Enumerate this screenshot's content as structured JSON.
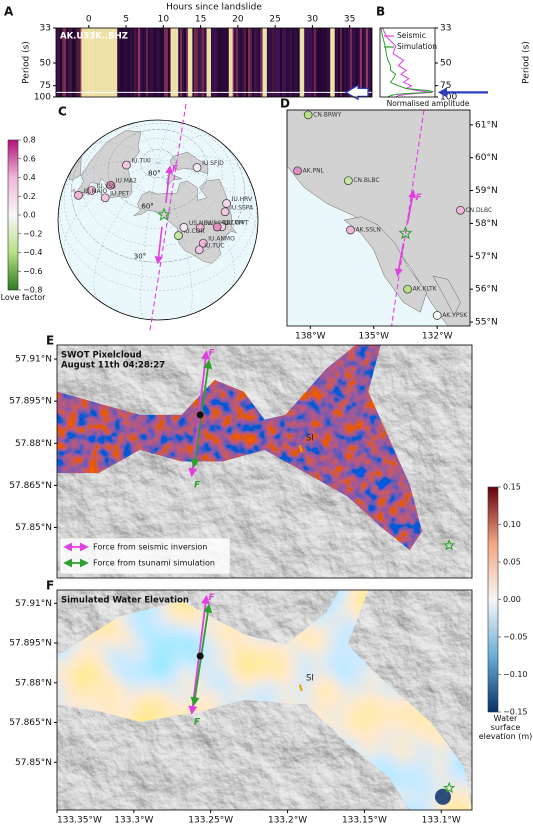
{
  "chart_data": [
    {
      "type": "spectrogram",
      "panel": "A",
      "station": "AK.U33K..BHZ",
      "xlabel": "Hours since landslide",
      "ylabel": "Period (s)",
      "xlim": [
        -4.4,
        38
      ],
      "xticks": [
        0,
        5,
        10,
        15,
        20,
        25,
        30,
        35
      ],
      "ylim": [
        33,
        100
      ],
      "yticks": [
        33,
        50,
        75,
        100
      ],
      "yscale": "reciprocal",
      "bright_intervals": [
        [
          -1,
          3.8
        ],
        [
          11,
          12
        ],
        [
          13.3,
          13.9
        ],
        [
          15.8,
          16.4
        ],
        [
          18.8,
          19.3
        ],
        [
          23.3,
          23.9
        ],
        [
          28.3,
          28.9
        ],
        [
          32.4,
          33
        ]
      ],
      "highlight_period": 88,
      "colormap": [
        "#12031f",
        "#5a1a6e",
        "#c8507a",
        "#fcf3b0"
      ],
      "arrow_color": "#2a3fbf"
    },
    {
      "type": "line",
      "panel": "B",
      "xlabel": "Normalised amplitude",
      "ylabel": "Period (s)",
      "xlim": [
        0,
        1.05
      ],
      "ylim": [
        33,
        100
      ],
      "yticks": [
        33,
        50,
        75,
        100
      ],
      "yscale": "reciprocal",
      "y": [
        33,
        36,
        40,
        44,
        48,
        52,
        56,
        60,
        65,
        70,
        75,
        80,
        84,
        86,
        88,
        90,
        93,
        96,
        100
      ],
      "series": [
        {
          "name": "Seismic",
          "color": "#e040e0",
          "values": [
            0.05,
            0.12,
            0.3,
            0.25,
            0.45,
            0.35,
            0.5,
            0.4,
            0.55,
            0.45,
            0.6,
            0.5,
            0.7,
            0.85,
            1.0,
            0.75,
            0.5,
            0.35,
            0.3
          ]
        },
        {
          "name": "Simulation",
          "color": "#2ca02c",
          "values": [
            0.02,
            0.05,
            0.1,
            0.12,
            0.15,
            0.2,
            0.2,
            0.3,
            0.25,
            0.2,
            0.35,
            0.5,
            0.9,
            1.0,
            0.95,
            0.6,
            0.3,
            0.2,
            0.15
          ]
        }
      ],
      "arrow_color": "#2a3fbf"
    },
    {
      "type": "globe",
      "panel": "C",
      "parallels": [
        {
          "value": 30,
          "label": "30°"
        },
        {
          "value": 60,
          "label": "60°"
        },
        {
          "value": 80,
          "label": "80°"
        }
      ],
      "stations": [
        {
          "name": "IU.TIXI",
          "lat": 71.6,
          "lon": 128.9,
          "love": 0.3
        },
        {
          "name": "IU.MA2",
          "lat": 59.6,
          "lon": 150.8,
          "love": 0.5
        },
        {
          "name": "IU.YSS",
          "lat": 47.0,
          "lon": 142.8,
          "love": 0.4
        },
        {
          "name": "IU.PET",
          "lat": 53.0,
          "lon": 158.6,
          "love": 0.3
        },
        {
          "name": "IU.MAJO",
          "lat": 36.5,
          "lon": 138.2,
          "love": 0.4
        },
        {
          "name": "IU.SFJD",
          "lat": 67.0,
          "lon": -50.6,
          "love": 0.1
        },
        {
          "name": "IU.HRV",
          "lat": 42.5,
          "lon": -71.6,
          "love": 0.2
        },
        {
          "name": "IU.SSPA",
          "lat": 40.6,
          "lon": -77.9,
          "love": 0.3
        },
        {
          "name": "IU.RSSD",
          "lat": 44.1,
          "lon": -104.0,
          "love": 0.4
        },
        {
          "name": "IU.WVT",
          "lat": 36.1,
          "lon": -87.8,
          "love": 0.2
        },
        {
          "name": "IU.CCM",
          "lat": 38.1,
          "lon": -91.2,
          "love": 0.5
        },
        {
          "name": "IU.ANMO",
          "lat": 34.9,
          "lon": -106.5,
          "love": 0.4
        },
        {
          "name": "IU.TUC",
          "lat": 32.3,
          "lon": -110.8,
          "love": 0.3
        },
        {
          "name": "IU.COR",
          "lat": 44.6,
          "lon": -123.3,
          "love": -0.3
        },
        {
          "name": "US.NEW",
          "lat": 48.3,
          "lon": -117.1,
          "love": 0.1
        }
      ],
      "source": {
        "lat": 57.8,
        "lon": -133.6
      },
      "force_label": "F",
      "colorbar": {
        "label": "Love factor",
        "lim": [
          -0.8,
          0.8
        ],
        "ticks": [
          {
            "value": -0.8,
            "label": "−0.8"
          },
          {
            "value": -0.6,
            "label": "−0.6"
          },
          {
            "value": -0.4,
            "label": "−0.4"
          },
          {
            "value": -0.2,
            "label": "−0.2"
          },
          {
            "value": 0,
            "label": "0.0"
          },
          0.2,
          0.4,
          0.6,
          0.8
        ],
        "colors": [
          "#2d7a1e",
          "#b8e186",
          "#f7f7f7",
          "#f1b6da",
          "#b0127a"
        ]
      }
    },
    {
      "type": "map",
      "panel": "D",
      "xlim": [
        -139.1,
        -130.45
      ],
      "ylim": [
        54.88,
        61.45
      ],
      "xticks": [
        {
          "value": -138,
          "label": "138°W"
        },
        {
          "value": -135,
          "label": "135°W"
        },
        {
          "value": -132,
          "label": "132°W"
        }
      ],
      "yticks": [
        {
          "value": 55,
          "label": "55°N"
        },
        {
          "value": 56,
          "label": "56°N"
        },
        {
          "value": 57,
          "label": "57°N"
        },
        {
          "value": 58,
          "label": "58°N"
        },
        {
          "value": 59,
          "label": "59°N"
        },
        {
          "value": 60,
          "label": "60°N"
        },
        {
          "value": 61,
          "label": "61°N"
        }
      ],
      "stations": [
        {
          "name": "CN.BRWY",
          "lat": 61.3,
          "lon": -138.1,
          "love": -0.4
        },
        {
          "name": "AK.PNL",
          "lat": 59.6,
          "lon": -138.6,
          "love": 0.5
        },
        {
          "name": "CN.BLBC",
          "lat": 59.3,
          "lon": -136.2,
          "love": -0.3
        },
        {
          "name": "CN.DLBC",
          "lat": 58.4,
          "lon": -130.9,
          "love": 0.4
        },
        {
          "name": "AK.SSLN",
          "lat": 57.8,
          "lon": -136.1,
          "love": 0.4
        },
        {
          "name": "AK.KLTK",
          "lat": 56.0,
          "lon": -133.4,
          "love": -0.4
        },
        {
          "name": "AK.YPSK",
          "lat": 55.2,
          "lon": -132.0,
          "love": 0.0
        }
      ],
      "source": {
        "lat": 57.7,
        "lon": -133.5
      },
      "force_label": "F"
    },
    {
      "type": "elevation-map",
      "panel": "E",
      "title": "SWOT Pixelcloud",
      "subtitle": "August 11th 04:28:27",
      "xlim": [
        -133.35,
        -133.08
      ],
      "ylim": [
        57.832,
        57.915
      ],
      "yticks": [
        {
          "value": 57.91,
          "label": "57.91°N"
        },
        {
          "value": 57.895,
          "label": "57.895°N"
        },
        {
          "value": 57.88,
          "label": "57.88°N"
        },
        {
          "value": 57.865,
          "label": "57.865°N"
        },
        {
          "value": 57.85,
          "label": "57.85°N"
        }
      ],
      "annotation": "SI",
      "force_label": "F",
      "legend": [
        {
          "name": "Force from seismic inversion",
          "color": "#e040e0"
        },
        {
          "name": "Force from tsunami simulation",
          "color": "#2ca02c"
        }
      ]
    },
    {
      "type": "elevation-map",
      "panel": "F",
      "title": "Simulated Water Elevation",
      "xlim": [
        -133.35,
        -133.08
      ],
      "ylim": [
        57.832,
        57.915
      ],
      "xticks": [
        {
          "value": -133.35,
          "label": "133.35°W"
        },
        {
          "value": -133.3,
          "label": "133.3°W"
        },
        {
          "value": -133.25,
          "label": "133.25°W"
        },
        {
          "value": -133.2,
          "label": "133.2°W"
        },
        {
          "value": -133.15,
          "label": "133.15°W"
        },
        {
          "value": -133.1,
          "label": "133.1°W"
        }
      ],
      "yticks": [
        {
          "value": 57.91,
          "label": "57.91°N"
        },
        {
          "value": 57.895,
          "label": "57.895°N"
        },
        {
          "value": 57.88,
          "label": "57.88°N"
        },
        {
          "value": 57.865,
          "label": "57.865°N"
        },
        {
          "value": 57.85,
          "label": "57.85°N"
        }
      ],
      "annotation": "SI",
      "force_label": "F",
      "colorbar": {
        "label": "Water surface elevation (m)",
        "lim": [
          -0.15,
          0.15
        ],
        "ticks": [
          {
            "value": -0.15,
            "label": "−0.15"
          },
          {
            "value": -0.1,
            "label": "−0.10"
          },
          {
            "value": -0.05,
            "label": "−0.05"
          },
          {
            "value": 0,
            "label": "0.00"
          },
          0.05,
          {
            "value": 0.1,
            "label": "0.10"
          },
          0.15
        ],
        "colors": [
          "#08306b",
          "#6aaed6",
          "#f7f7f7",
          "#f4a582",
          "#67000d"
        ]
      }
    }
  ]
}
